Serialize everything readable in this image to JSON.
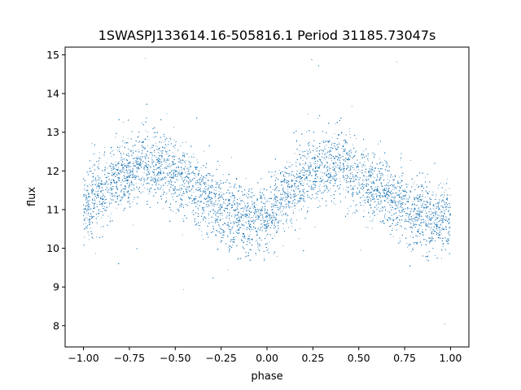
{
  "chart_data": {
    "type": "scatter",
    "title": "1SWASPJ133614.16-505816.1 Period 31185.73047s",
    "xlabel": "phase",
    "ylabel": "flux",
    "xlim": [
      -1.1,
      1.1
    ],
    "ylim": [
      7.45,
      15.2
    ],
    "x_ticks": [
      -1.0,
      -0.75,
      -0.5,
      -0.25,
      0.0,
      0.25,
      0.5,
      0.75,
      1.0
    ],
    "x_tick_labels": [
      "−1.00",
      "−0.75",
      "−0.50",
      "−0.25",
      "0.00",
      "0.25",
      "0.50",
      "0.75",
      "1.00"
    ],
    "y_ticks": [
      8,
      9,
      10,
      11,
      12,
      13,
      14,
      15
    ],
    "y_tick_labels": [
      "8",
      "9",
      "10",
      "11",
      "12",
      "13",
      "14",
      "15"
    ],
    "grid": false,
    "marker_color": "#1f77b4",
    "series": [
      {
        "phase_range": [
          -1.0,
          1.0
        ],
        "trend": {
          "phase": [
            -1.0,
            -0.9,
            -0.8,
            -0.7,
            -0.6,
            -0.5,
            -0.4,
            -0.3,
            -0.2,
            -0.1,
            0.0,
            0.1,
            0.2,
            0.3,
            0.4,
            0.5,
            0.6,
            0.7,
            0.8,
            0.9,
            1.0
          ],
          "flux": [
            11.1,
            11.45,
            11.9,
            12.15,
            12.2,
            11.9,
            11.6,
            11.2,
            10.85,
            10.65,
            10.85,
            11.35,
            11.85,
            12.15,
            12.2,
            11.85,
            11.55,
            11.25,
            10.9,
            10.7,
            10.8
          ]
        },
        "scatter_sd": 0.45,
        "n_points": 14000
      }
    ]
  }
}
